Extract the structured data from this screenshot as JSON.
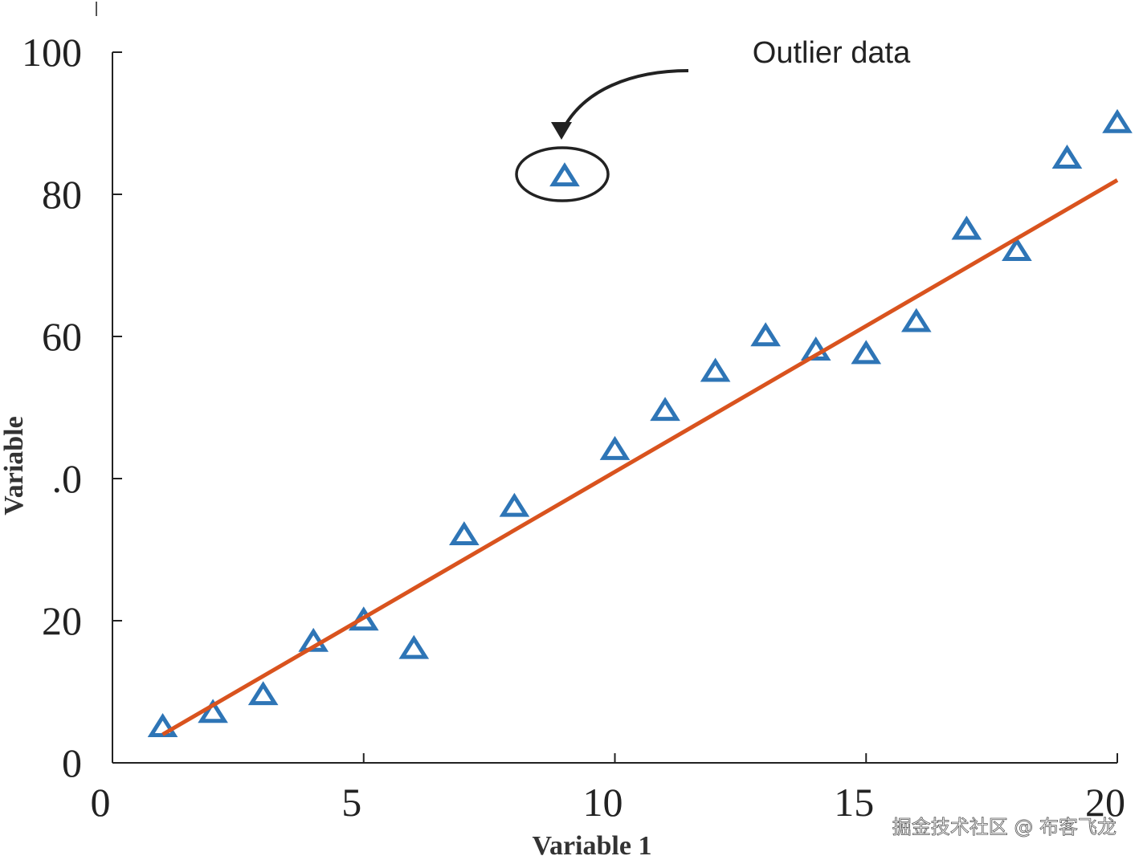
{
  "chart_data": {
    "type": "scatter",
    "xlabel": "Variable 1",
    "ylabel": "Variable",
    "xlim": [
      0,
      20
    ],
    "ylim": [
      0,
      100
    ],
    "xticks": [
      0,
      5,
      10,
      15,
      20
    ],
    "yticks": [
      0,
      20,
      {
        "value": 40,
        "label": ".0"
      },
      60,
      80,
      100
    ],
    "annotation": "Outlier data",
    "watermark": "掘金技术社区 @ 布客飞龙",
    "series": [
      {
        "type": "scatter",
        "marker": "triangle",
        "color": "#2e75b6",
        "x": [
          1,
          2,
          3,
          4,
          5,
          6,
          7,
          8,
          9,
          10,
          11,
          12,
          13,
          14,
          15,
          16,
          17,
          18,
          19,
          20
        ],
        "values": [
          5,
          7,
          9.5,
          17,
          20,
          16,
          32,
          36,
          82.5,
          44,
          49.5,
          55,
          60,
          58,
          57.5,
          62,
          75,
          72,
          85,
          90
        ]
      },
      {
        "type": "line",
        "color": "#d9531e",
        "x": [
          1,
          20
        ],
        "values": [
          4,
          82
        ]
      }
    ]
  }
}
